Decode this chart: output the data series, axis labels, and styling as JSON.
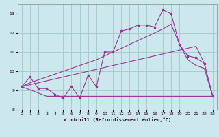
{
  "background_color": "#cce8ec",
  "grid_color": "#a8cccc",
  "line_color": "#993399",
  "xlabel": "Windchill (Refroidissement éolien,°C)",
  "hours": [
    0,
    1,
    2,
    3,
    4,
    5,
    6,
    7,
    8,
    9,
    10,
    11,
    12,
    13,
    14,
    15,
    16,
    17,
    18,
    19,
    20,
    21,
    22,
    23
  ],
  "jagged_y": [
    9.2,
    9.7,
    9.1,
    9.1,
    8.8,
    8.6,
    9.2,
    8.6,
    9.8,
    9.2,
    11.0,
    11.0,
    12.1,
    12.2,
    12.4,
    12.4,
    12.3,
    13.2,
    13.0,
    11.4,
    10.8,
    10.7,
    10.4,
    8.7
  ],
  "upper_env_x": [
    0,
    1,
    2,
    3,
    4,
    5,
    6,
    7,
    8,
    9,
    10,
    11,
    12,
    13,
    14,
    15,
    16,
    17,
    18,
    19,
    20,
    21,
    22,
    23
  ],
  "upper_env_y": [
    9.2,
    9.4,
    9.55,
    9.7,
    9.85,
    10.0,
    10.15,
    10.3,
    10.45,
    10.6,
    10.8,
    11.0,
    11.2,
    11.4,
    11.6,
    11.8,
    12.0,
    12.2,
    12.45,
    11.4,
    10.6,
    10.3,
    10.15,
    8.7
  ],
  "lower_env_x": [
    0,
    1,
    2,
    3,
    4,
    5,
    6,
    7,
    8,
    9,
    10,
    11,
    12,
    13,
    14,
    15,
    16,
    17,
    18,
    19,
    20,
    21,
    22,
    23
  ],
  "lower_env_y": [
    9.2,
    9.3,
    9.4,
    9.5,
    9.6,
    9.7,
    9.8,
    9.9,
    10.0,
    10.1,
    10.2,
    10.3,
    10.4,
    10.5,
    10.6,
    10.7,
    10.8,
    10.9,
    11.0,
    11.1,
    11.2,
    11.3,
    10.4,
    8.7
  ],
  "flat_x": [
    0,
    3,
    4,
    5,
    6,
    7,
    8,
    9,
    10,
    11,
    12,
    13,
    14,
    15,
    16,
    17,
    18,
    19,
    20,
    21,
    22,
    23
  ],
  "flat_y": [
    9.2,
    8.7,
    8.7,
    8.7,
    8.7,
    8.7,
    8.7,
    8.7,
    8.7,
    8.7,
    8.7,
    8.7,
    8.7,
    8.7,
    8.7,
    8.7,
    8.7,
    8.7,
    8.7,
    8.7,
    8.7,
    8.7
  ],
  "ylim": [
    8.0,
    13.5
  ],
  "xlim": [
    -0.5,
    23.5
  ],
  "yticks": [
    8,
    9,
    10,
    11,
    12,
    13
  ],
  "xticks": [
    0,
    1,
    2,
    3,
    4,
    5,
    6,
    7,
    8,
    9,
    10,
    11,
    12,
    13,
    14,
    15,
    16,
    17,
    18,
    19,
    20,
    21,
    22,
    23
  ]
}
